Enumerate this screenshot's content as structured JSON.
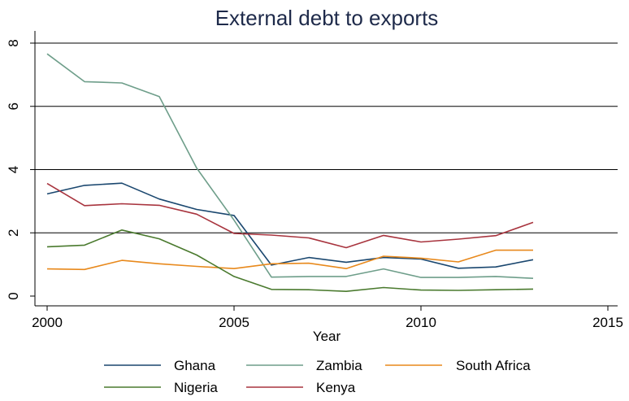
{
  "chart_data": {
    "type": "line",
    "title": "External debt to exports",
    "xlabel": "Year",
    "ylabel": "",
    "xlim": [
      2000,
      2015
    ],
    "ylim": [
      0,
      8
    ],
    "xticks": [
      "2000",
      "2005",
      "2010",
      "2015"
    ],
    "yticks": [
      "0",
      "2",
      "4",
      "6",
      "8"
    ],
    "grid": "horizontal",
    "legend_position": "bottom",
    "x": [
      2000,
      2001,
      2002,
      2003,
      2004,
      2005,
      2006,
      2007,
      2008,
      2009,
      2010,
      2011,
      2012,
      2013
    ],
    "series": [
      {
        "name": "Ghana",
        "color": "#1a476f",
        "values": [
          3.23,
          3.5,
          3.57,
          3.07,
          2.74,
          2.55,
          0.98,
          1.22,
          1.07,
          1.22,
          1.17,
          0.88,
          0.92,
          1.15
        ]
      },
      {
        "name": "Zambia",
        "color": "#6e9e8a",
        "values": [
          7.66,
          6.78,
          6.74,
          6.31,
          4.05,
          2.4,
          0.6,
          0.62,
          0.62,
          0.86,
          0.59,
          0.59,
          0.62,
          0.56
        ]
      },
      {
        "name": "South Africa",
        "color": "#e8891c",
        "values": [
          0.86,
          0.84,
          1.13,
          1.02,
          0.94,
          0.87,
          1.02,
          1.04,
          0.87,
          1.26,
          1.2,
          1.08,
          1.45,
          1.45
        ]
      },
      {
        "name": "Nigeria",
        "color": "#4a7a2e",
        "values": [
          1.56,
          1.61,
          2.09,
          1.81,
          1.3,
          0.62,
          0.21,
          0.2,
          0.15,
          0.27,
          0.19,
          0.18,
          0.2,
          0.22
        ]
      },
      {
        "name": "Kenya",
        "color": "#a8343e",
        "values": [
          3.56,
          2.86,
          2.92,
          2.87,
          2.59,
          1.98,
          1.93,
          1.84,
          1.53,
          1.92,
          1.71,
          1.8,
          1.91,
          2.33
        ]
      }
    ]
  }
}
